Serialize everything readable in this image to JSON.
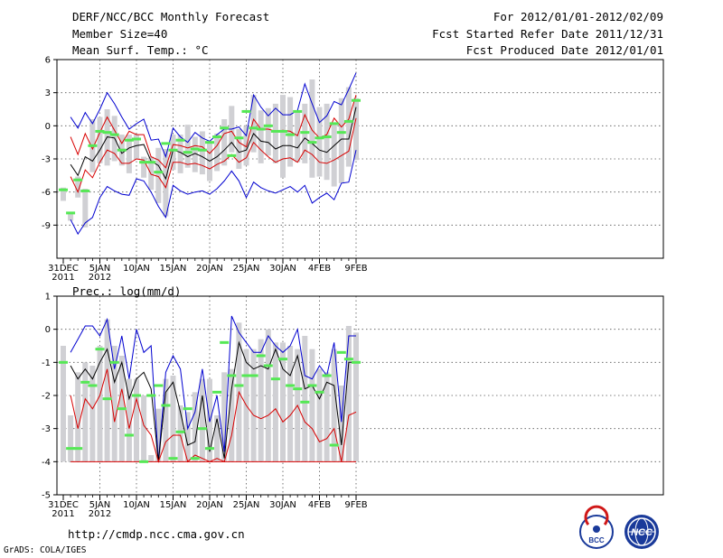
{
  "header": {
    "title": "DERF/NCC/BCC Monthly Forecast",
    "member_size": "Member Size=40",
    "variable": "Mean Surf. Temp.: °C",
    "forecast_for": "For 2012/01/01-2012/02/09",
    "fcst_started": "Fcst Started Refer Date 2011/12/31",
    "fcst_produced": "Fcst Produced Date 2012/01/01"
  },
  "footer": {
    "url": "http://cmdp.ncc.cma.gov.cn",
    "credit": "GrADS: COLA/IGES",
    "logo_bcc": "BCC",
    "logo_ncc": "NCC"
  },
  "colors": {
    "box": "#d0d0d4",
    "median": "#55e855",
    "blue": "#0000d0",
    "red": "#d80000",
    "black": "#000000",
    "grid": "#555555"
  },
  "chart_data": [
    {
      "type": "line",
      "title": "Mean Surf. Temp.: °C",
      "x_day_index": [
        0,
        1,
        2,
        3,
        4,
        5,
        6,
        7,
        8,
        9,
        10,
        11,
        12,
        13,
        14,
        15,
        16,
        17,
        18,
        19,
        20,
        21,
        22,
        23,
        24,
        25,
        26,
        27,
        28,
        29,
        30,
        31,
        32,
        33,
        34,
        35,
        36,
        37,
        38,
        39,
        40
      ],
      "x_ticks": [
        {
          "day": 0,
          "label": "31DEC",
          "sub": "2011"
        },
        {
          "day": 5,
          "label": "5JAN",
          "sub": "2012"
        },
        {
          "day": 10,
          "label": "10JAN",
          "sub": ""
        },
        {
          "day": 15,
          "label": "15JAN",
          "sub": ""
        },
        {
          "day": 20,
          "label": "20JAN",
          "sub": ""
        },
        {
          "day": 25,
          "label": "25JAN",
          "sub": ""
        },
        {
          "day": 30,
          "label": "30JAN",
          "sub": ""
        },
        {
          "day": 35,
          "label": "4FEB",
          "sub": ""
        },
        {
          "day": 40,
          "label": "9FEB",
          "sub": ""
        }
      ],
      "ylim": [
        -12,
        6
      ],
      "y_ticks": [
        6,
        3,
        0,
        -3,
        -6,
        -9
      ],
      "series": [
        {
          "name": "max",
          "color": "blue",
          "values": [
            null,
            0.8,
            -0.2,
            1.2,
            0.2,
            1.5,
            3.0,
            2.0,
            0.8,
            -0.3,
            0.2,
            0.6,
            -1.3,
            -1.2,
            -2.8,
            -0.2,
            -1.0,
            -1.5,
            -0.6,
            -1.1,
            -1.4,
            -0.8,
            -0.3,
            -0.3,
            -0.1,
            -0.9,
            2.8,
            1.7,
            0.9,
            1.6,
            1.0,
            1.0,
            1.4,
            3.8,
            2.0,
            0.3,
            0.9,
            2.2,
            1.9,
            3.3,
            4.8
          ]
        },
        {
          "name": "upper",
          "color": "red",
          "values": [
            null,
            -1.0,
            -2.6,
            -0.7,
            -2.1,
            -0.6,
            0.8,
            -0.4,
            -1.6,
            -0.5,
            -0.8,
            -0.8,
            -2.8,
            -3.1,
            -3.8,
            -1.7,
            -1.8,
            -2.0,
            -1.8,
            -1.9,
            -2.5,
            -1.8,
            -0.7,
            -0.5,
            -1.5,
            -1.9,
            0.6,
            -0.3,
            -0.3,
            -0.5,
            -0.4,
            -0.5,
            -0.9,
            1.0,
            -0.4,
            -1.1,
            -0.8,
            0.7,
            -0.1,
            0.6,
            2.8
          ]
        },
        {
          "name": "mean",
          "color": "black",
          "values": [
            null,
            -3.5,
            -4.5,
            -2.8,
            -3.2,
            -2.2,
            -1.0,
            -1.1,
            -2.5,
            -2.0,
            -1.8,
            -1.7,
            -3.2,
            -3.6,
            -4.8,
            -2.2,
            -2.4,
            -2.8,
            -2.5,
            -2.8,
            -3.2,
            -2.8,
            -2.2,
            -1.5,
            -2.4,
            -2.2,
            -0.7,
            -1.4,
            -1.5,
            -2.1,
            -1.8,
            -1.8,
            -2.0,
            -1.1,
            -1.6,
            -2.2,
            -2.4,
            -1.8,
            -1.2,
            -1.2,
            1.7
          ]
        },
        {
          "name": "lower",
          "color": "red",
          "values": [
            null,
            -4.6,
            -6.0,
            -4.0,
            -4.7,
            -3.3,
            -2.2,
            -2.5,
            -3.4,
            -3.4,
            -3.0,
            -3.1,
            -4.4,
            -4.6,
            -5.6,
            -3.3,
            -3.3,
            -3.5,
            -3.4,
            -3.6,
            -3.9,
            -3.5,
            -3.2,
            -2.6,
            -3.3,
            -2.9,
            -1.5,
            -2.2,
            -2.8,
            -3.3,
            -3.0,
            -2.9,
            -3.3,
            -2.2,
            -2.6,
            -3.3,
            -3.4,
            -3.1,
            -2.7,
            -2.3,
            0.7
          ]
        },
        {
          "name": "min",
          "color": "blue",
          "values": [
            null,
            -8.5,
            -9.8,
            -8.8,
            -8.3,
            -6.5,
            -5.5,
            -5.9,
            -6.2,
            -6.3,
            -4.8,
            -5.0,
            -6.0,
            -7.3,
            -8.3,
            -5.4,
            -5.9,
            -6.2,
            -6.0,
            -5.9,
            -6.2,
            -5.7,
            -5.0,
            -4.1,
            -5.0,
            -6.5,
            -5.1,
            -5.6,
            -5.9,
            -6.1,
            -5.8,
            -5.5,
            -6.0,
            -5.4,
            -7.0,
            -6.5,
            -6.1,
            -6.7,
            -5.2,
            -5.1,
            -2.2
          ]
        }
      ],
      "observed_medians": [
        -5.8,
        -7.9,
        -4.9,
        -5.9,
        -1.8,
        -0.5,
        -0.6,
        -0.8,
        -2.2,
        -1.3,
        -1.2,
        -3.3,
        -3.3,
        -4.2,
        -1.6,
        -2.2,
        -1.3,
        -2.4,
        -2.1,
        -2.2,
        -1.5,
        -1.0,
        -0.2,
        -2.7,
        -1.1,
        1.3,
        -0.2,
        -0.3,
        0.0,
        -0.5,
        -0.5,
        -0.8,
        1.3,
        -0.6,
        -1.5,
        -1.1,
        -1.0,
        0.2,
        -0.6,
        0.4,
        2.3
      ],
      "box_ranges": [
        [
          -6.8,
          -5.6
        ],
        [
          -8.6,
          -7.8
        ],
        [
          -6.5,
          -4.6
        ],
        [
          -9.2,
          -5.7
        ],
        [
          -4.2,
          0.6
        ],
        [
          -3.4,
          0.8
        ],
        [
          -3.6,
          1.5
        ],
        [
          -3.2,
          0.9
        ],
        [
          -3.6,
          -0.8
        ],
        [
          -4.3,
          -0.8
        ],
        [
          -3.0,
          -0.8
        ],
        [
          -4.7,
          -2.8
        ],
        [
          -5.8,
          -2.8
        ],
        [
          -7.0,
          -2.0
        ],
        [
          -8.2,
          -2.1
        ],
        [
          -4.0,
          -0.8
        ],
        [
          -4.3,
          -0.8
        ],
        [
          -3.8,
          0.1
        ],
        [
          -4.2,
          -1.0
        ],
        [
          -4.4,
          -0.5
        ],
        [
          -5.0,
          -1.5
        ],
        [
          -4.1,
          -0.7
        ],
        [
          -3.6,
          0.6
        ],
        [
          -2.4,
          1.8
        ],
        [
          -3.9,
          -0.3
        ],
        [
          -3.6,
          0.0
        ],
        [
          -2.4,
          2.8
        ],
        [
          -3.4,
          1.4
        ],
        [
          -2.7,
          1.6
        ],
        [
          -3.4,
          2.0
        ],
        [
          -4.7,
          2.8
        ],
        [
          -3.7,
          2.6
        ],
        [
          -3.3,
          1.2
        ],
        [
          -3.4,
          2.0
        ],
        [
          -4.7,
          4.2
        ],
        [
          -4.6,
          1.7
        ],
        [
          -4.9,
          2.0
        ],
        [
          -5.5,
          0.2
        ],
        [
          -5.2,
          2.5
        ],
        [
          -3.7,
          3.5
        ],
        [
          -3.1,
          2.5
        ]
      ]
    },
    {
      "type": "line",
      "title": "Prec.: log(mm/d)",
      "x_day_index": [
        0,
        1,
        2,
        3,
        4,
        5,
        6,
        7,
        8,
        9,
        10,
        11,
        12,
        13,
        14,
        15,
        16,
        17,
        18,
        19,
        20,
        21,
        22,
        23,
        24,
        25,
        26,
        27,
        28,
        29,
        30,
        31,
        32,
        33,
        34,
        35,
        36,
        37,
        38,
        39,
        40
      ],
      "x_ticks": [
        {
          "day": 0,
          "label": "31DEC",
          "sub": "2011"
        },
        {
          "day": 5,
          "label": "5JAN",
          "sub": "2012"
        },
        {
          "day": 10,
          "label": "10JAN",
          "sub": ""
        },
        {
          "day": 15,
          "label": "15JAN",
          "sub": ""
        },
        {
          "day": 20,
          "label": "20JAN",
          "sub": ""
        },
        {
          "day": 25,
          "label": "25JAN",
          "sub": ""
        },
        {
          "day": 30,
          "label": "30JAN",
          "sub": ""
        },
        {
          "day": 35,
          "label": "4FEB",
          "sub": ""
        },
        {
          "day": 40,
          "label": "9FEB",
          "sub": ""
        }
      ],
      "ylim": [
        -5,
        1
      ],
      "y_ticks": [
        1,
        0,
        -1,
        -2,
        -3,
        -4,
        -5
      ],
      "floor": -4,
      "series": [
        {
          "name": "max",
          "color": "blue",
          "values": [
            null,
            -0.7,
            -0.3,
            0.1,
            0.1,
            -0.2,
            0.3,
            -1.2,
            -0.2,
            -1.5,
            0.0,
            -0.7,
            -0.5,
            -4.0,
            -1.3,
            -0.8,
            -1.2,
            -3.0,
            -2.5,
            -1.2,
            -2.8,
            -2.0,
            -3.7,
            0.4,
            -0.1,
            -0.4,
            -0.7,
            -0.7,
            -0.2,
            -0.5,
            -0.7,
            -0.5,
            0.0,
            -1.4,
            -1.5,
            -1.1,
            -1.4,
            -0.4,
            -2.8,
            -0.2,
            -0.2
          ]
        },
        {
          "name": "mean",
          "color": "black",
          "values": [
            null,
            -1.1,
            -1.5,
            -1.2,
            -1.5,
            -1.0,
            -0.6,
            -1.6,
            -1.0,
            -2.1,
            -1.5,
            -1.3,
            -1.8,
            -4.0,
            -1.9,
            -1.6,
            -2.5,
            -3.5,
            -3.4,
            -2.0,
            -3.7,
            -2.7,
            -3.9,
            -1.8,
            -0.4,
            -1.0,
            -1.2,
            -1.1,
            -1.2,
            -0.6,
            -1.2,
            -1.4,
            -0.8,
            -1.8,
            -1.7,
            -2.1,
            -1.6,
            -1.7,
            -3.5,
            -1.0,
            -1.0
          ]
        },
        {
          "name": "lower",
          "color": "red",
          "values": [
            null,
            -2.0,
            -3.0,
            -2.1,
            -2.4,
            -2.0,
            -1.2,
            -2.8,
            -1.8,
            -3.0,
            -2.1,
            -2.9,
            -3.2,
            -4.0,
            -3.4,
            -3.2,
            -3.2,
            -4.0,
            -3.8,
            -3.9,
            -4.0,
            -3.9,
            -4.0,
            -3.2,
            -1.9,
            -2.3,
            -2.6,
            -2.7,
            -2.6,
            -2.4,
            -2.8,
            -2.6,
            -2.3,
            -2.8,
            -3.0,
            -3.4,
            -3.3,
            -3.0,
            -4.0,
            -2.6,
            -2.5
          ]
        }
      ],
      "observed_medians": [
        -1.0,
        -3.6,
        -3.6,
        -1.6,
        -1.7,
        -0.6,
        -2.1,
        -1.0,
        -2.4,
        -3.2,
        -2.0,
        -4.0,
        -2.0,
        -1.7,
        -2.3,
        -3.9,
        -3.1,
        -2.4,
        -3.9,
        -3.0,
        -3.6,
        -1.9,
        -0.4,
        -1.4,
        -1.7,
        -1.4,
        -1.4,
        -0.8,
        -1.1,
        -1.5,
        -0.9,
        -1.7,
        -1.8,
        -2.2,
        -1.7,
        -1.9,
        -1.4,
        -3.5,
        -0.7,
        -0.9,
        -1.0
      ],
      "box_tops": [
        -0.5,
        -2.6,
        -1.3,
        -1.0,
        -1.1,
        -0.5,
        0.3,
        -0.5,
        -0.8,
        -1.5,
        -1.5,
        -2.0,
        -3.8,
        -2.4,
        -1.5,
        -1.4,
        -2.3,
        -2.5,
        -1.9,
        -1.5,
        -1.5,
        -2.6,
        -1.3,
        -1.2,
        0.2,
        -0.6,
        -0.6,
        -0.3,
        0.0,
        -0.4,
        -0.4,
        -0.5,
        -0.6,
        -0.2,
        -0.6,
        -1.2,
        -1.3,
        -0.6,
        -1.7,
        0.1,
        -0.1
      ]
    }
  ]
}
